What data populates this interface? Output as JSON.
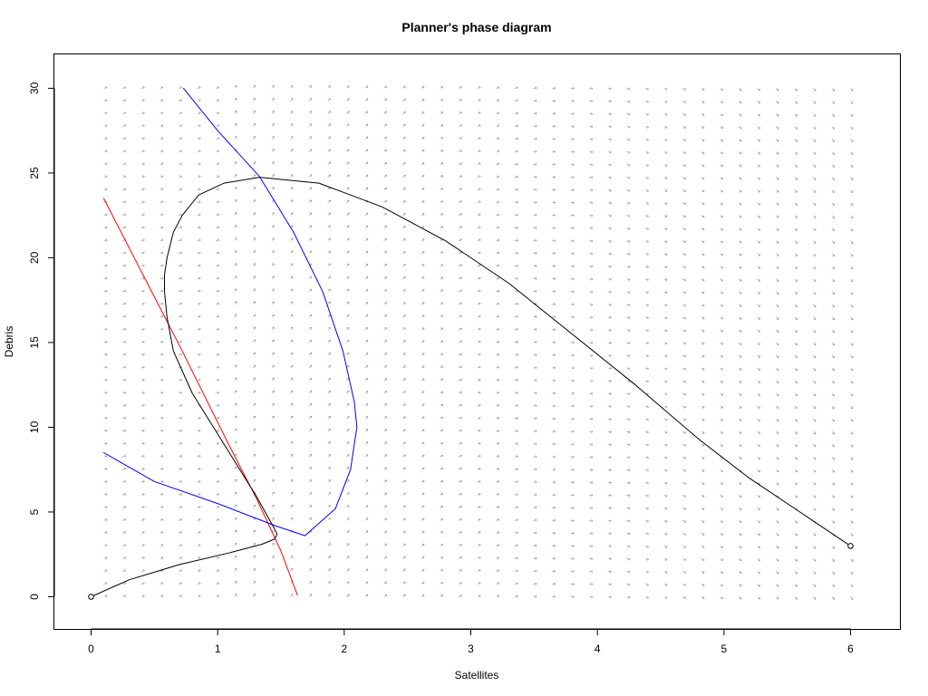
{
  "chart_data": {
    "type": "line",
    "title": "Planner's phase diagram",
    "xlabel": "Satellites",
    "ylabel": "Debris",
    "xlim": [
      -0.29,
      6.39
    ],
    "ylim": [
      -1.9,
      32.0
    ],
    "xticks": [
      0,
      1,
      2,
      3,
      4,
      5,
      6
    ],
    "yticks": [
      0,
      5,
      10,
      15,
      20,
      25,
      30
    ],
    "grid": false,
    "legend": "none",
    "vector_field": {
      "x_range": [
        0.1,
        6.0
      ],
      "y_range": [
        0,
        30
      ],
      "x_count": 41,
      "y_count": 41,
      "color": "#999999"
    },
    "series": [
      {
        "color": "#ff0000",
        "x": [
          0.1,
          0.3,
          0.5,
          0.7,
          0.9,
          1.1,
          1.3,
          1.5,
          1.63
        ],
        "y": [
          23.5,
          20.6,
          17.7,
          14.8,
          11.8,
          8.8,
          5.9,
          2.7,
          0.1
        ]
      },
      {
        "color": "#0000ff",
        "x": [
          0.1,
          0.5,
          1.0,
          1.45,
          1.69
        ],
        "y": [
          8.5,
          6.8,
          5.5,
          4.2,
          3.6
        ]
      },
      {
        "color": "#0000ff",
        "x": [
          0.73,
          1.0,
          1.33,
          1.6,
          1.83,
          1.99,
          2.08,
          2.1,
          2.05,
          1.93,
          1.69
        ],
        "y": [
          30.0,
          27.5,
          24.8,
          21.5,
          18.0,
          14.5,
          11.5,
          10.0,
          7.5,
          5.2,
          3.6
        ]
      },
      {
        "color": "#000000",
        "x": [
          0,
          0.3,
          0.7,
          1.1,
          1.35,
          1.45,
          1.47,
          1.45,
          1.3,
          1.05,
          0.8,
          0.65,
          0.6,
          0.58,
          0.58,
          0.6,
          0.65,
          0.72,
          0.85,
          1.05,
          1.33,
          1.8,
          2.3,
          2.8,
          3.3,
          3.8,
          4.3,
          4.8,
          5.2,
          5.6,
          6.0
        ],
        "y": [
          0,
          1.0,
          1.9,
          2.6,
          3.1,
          3.4,
          3.7,
          4.0,
          6.0,
          9.0,
          12.0,
          14.5,
          16.5,
          18.0,
          19.0,
          20.0,
          21.5,
          22.5,
          23.7,
          24.4,
          24.75,
          24.4,
          23.0,
          21.0,
          18.5,
          15.5,
          12.5,
          9.3,
          7.0,
          5.0,
          3.0
        ]
      }
    ],
    "points": [
      {
        "x": 0,
        "y": 0
      },
      {
        "x": 6,
        "y": 3
      }
    ]
  }
}
